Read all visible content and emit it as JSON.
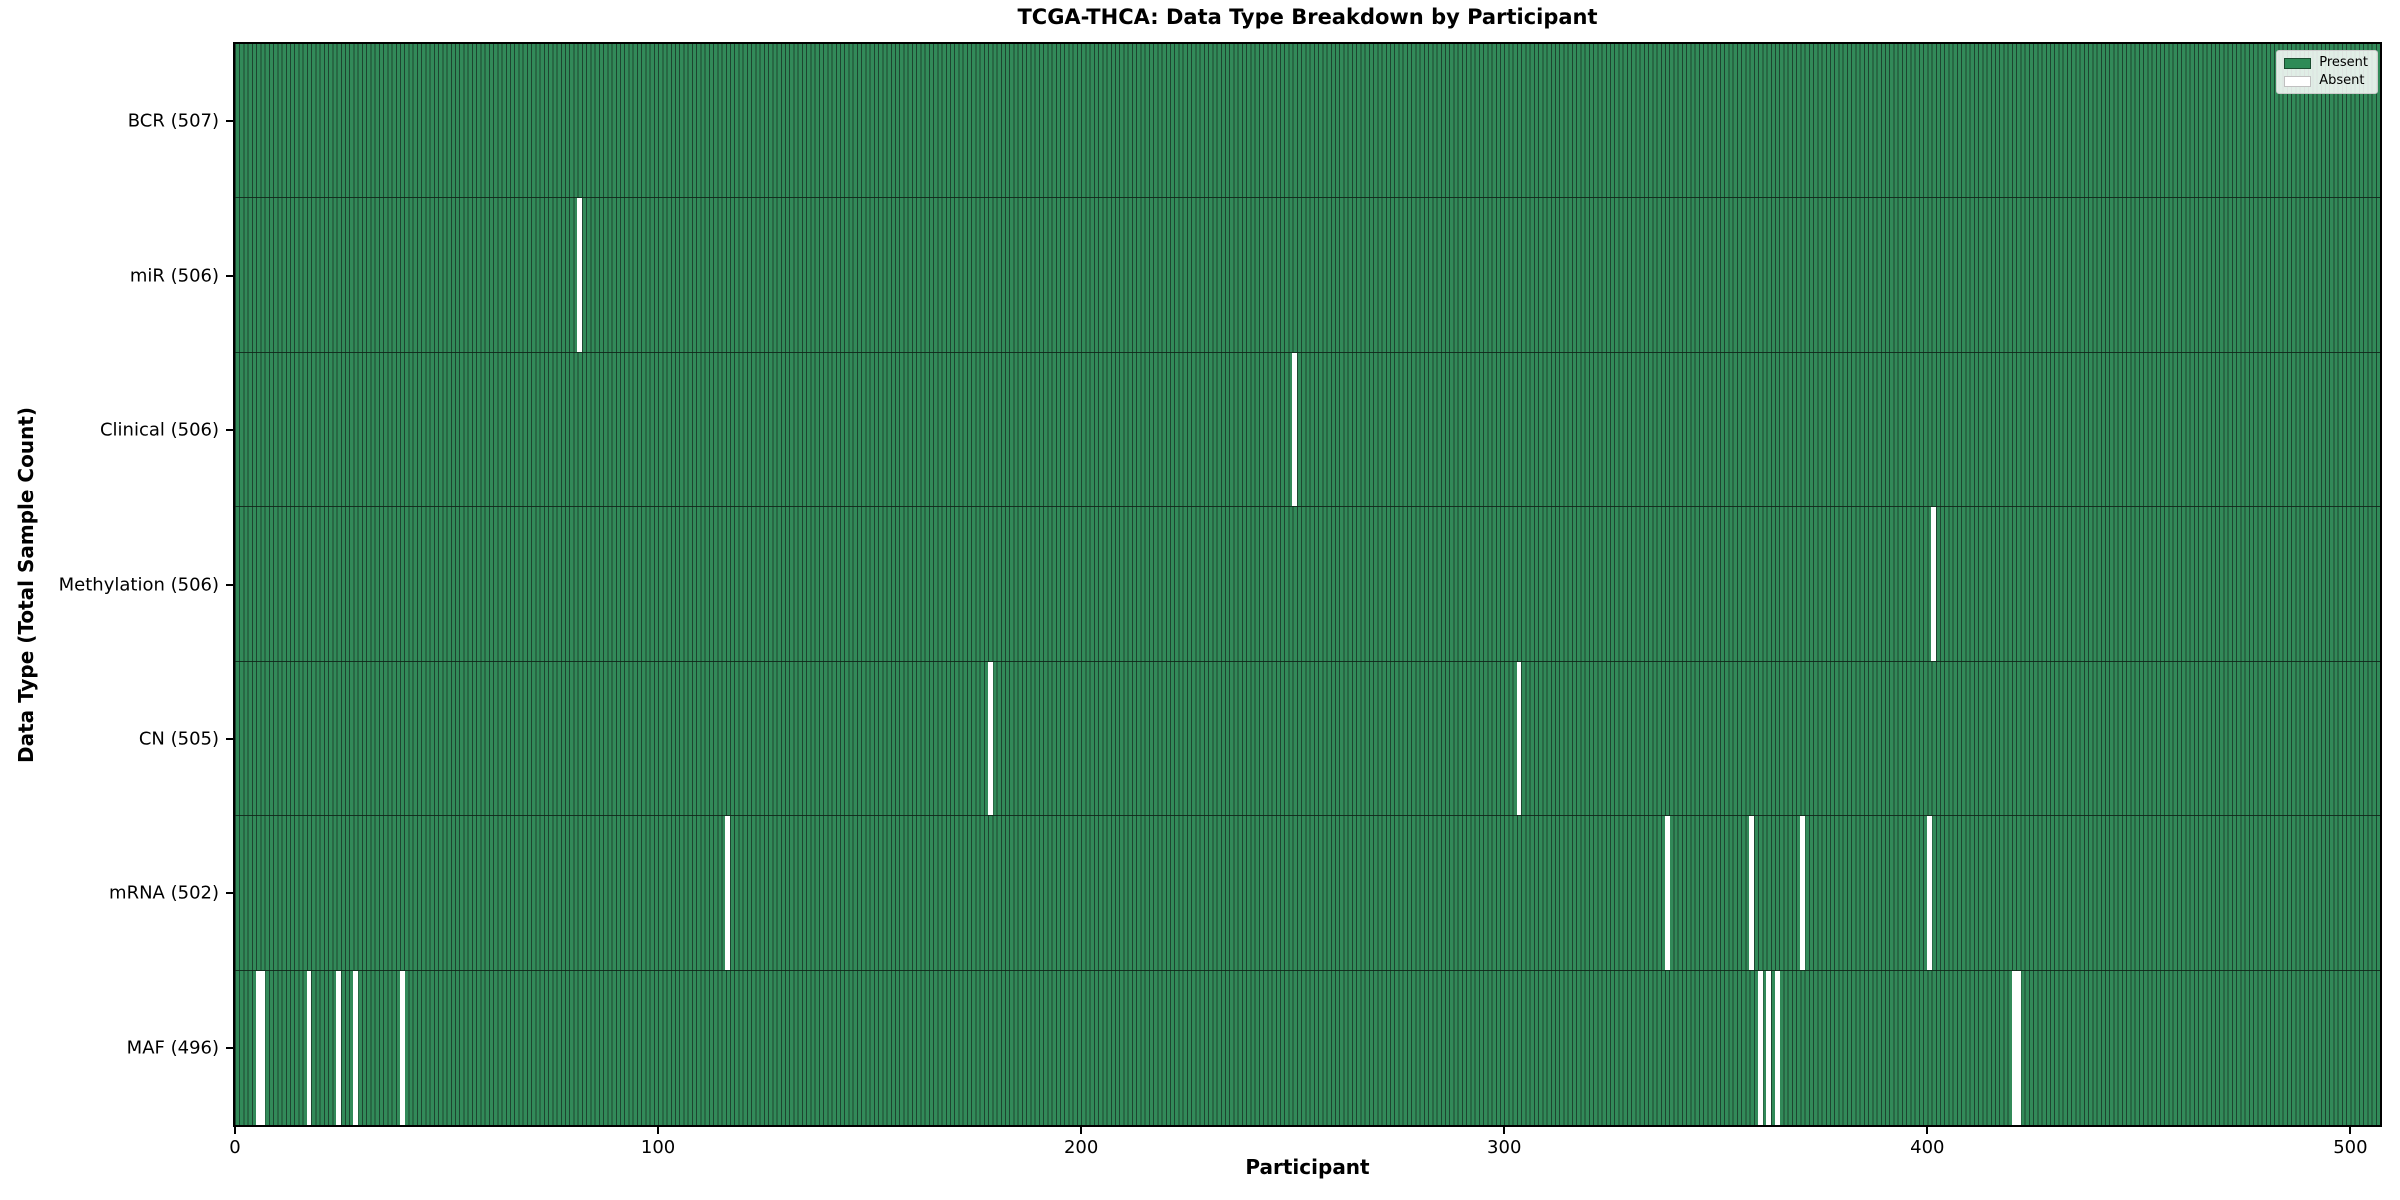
{
  "chart_data": {
    "type": "heatmap",
    "title": "TCGA-THCA: Data Type Breakdown by Participant",
    "xlabel": "Participant",
    "ylabel": "Data Type (Total Sample Count)",
    "x_ticks": [
      0,
      100,
      200,
      300,
      400,
      500
    ],
    "xlim": [
      0,
      507
    ],
    "total_participants": 507,
    "grid": false,
    "legend": {
      "position": "upper right",
      "entries": [
        {
          "label": "Present",
          "color": "#2e8b57",
          "edge": "rgba(0,0,0,0.45)"
        },
        {
          "label": "Absent",
          "color": "#ffffff",
          "edge": "#c0c0c0"
        }
      ]
    },
    "colors": {
      "present_fill": "#328a59",
      "bar_edge": "#1d4530",
      "absent": "#ffffff",
      "row_separator": "rgba(15,35,23,0.85)",
      "frame": "#000000",
      "background": "#ffffff"
    },
    "rows": [
      {
        "label": "BCR (507)",
        "data_type": "BCR",
        "present_count": 507,
        "absent_participants": []
      },
      {
        "label": "miR (506)",
        "data_type": "miR",
        "present_count": 506,
        "absent_participants": [
          81
        ]
      },
      {
        "label": "Clinical (506)",
        "data_type": "Clinical",
        "present_count": 506,
        "absent_participants": [
          250
        ]
      },
      {
        "label": "Methylation (506)",
        "data_type": "Methylation",
        "present_count": 506,
        "absent_participants": [
          401
        ]
      },
      {
        "label": "CN (505)",
        "data_type": "CN",
        "present_count": 505,
        "absent_participants": [
          178,
          303
        ]
      },
      {
        "label": "mRNA (502)",
        "data_type": "mRNA",
        "present_count": 502,
        "absent_participants": [
          116,
          338,
          358,
          370,
          400
        ]
      },
      {
        "label": "MAF (496)",
        "data_type": "MAF",
        "present_count": 496,
        "absent_participants": [
          5,
          6,
          17,
          24,
          28,
          39,
          360,
          362,
          364,
          420,
          421
        ]
      }
    ]
  }
}
